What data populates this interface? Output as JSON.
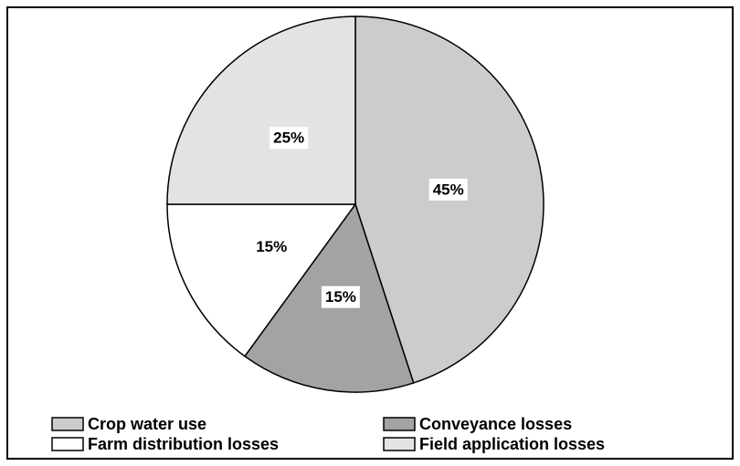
{
  "chart_data": {
    "type": "pie",
    "categories": [
      "Crop water use",
      "Conveyance losses",
      "Farm distribution losses",
      "Field application losses"
    ],
    "values": [
      45,
      15,
      15,
      25
    ],
    "value_labels": [
      "45%",
      "15%",
      "15%",
      "25%"
    ],
    "colors": [
      "#cccccc",
      "#a3a3a3",
      "#ffffff",
      "#e3e3e3"
    ],
    "legend": "bottom"
  }
}
